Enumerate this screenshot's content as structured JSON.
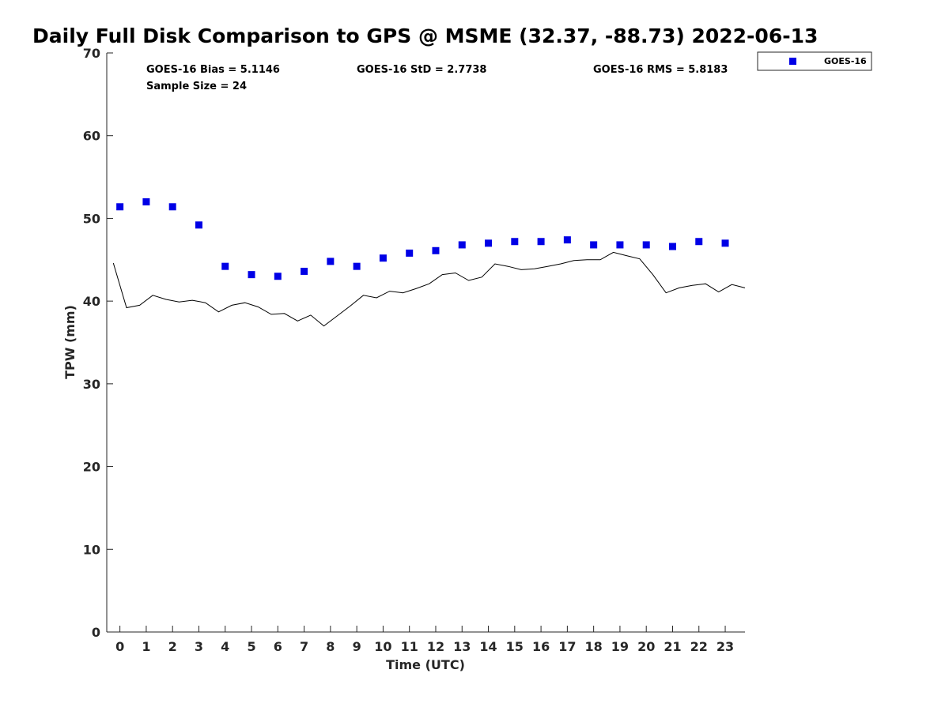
{
  "chart_data": {
    "type": "scatter",
    "title": "Daily Full Disk Comparison to GPS @ MSME (32.37, -88.73) 2022-06-13",
    "xlabel": "Time (UTC)",
    "ylabel": "TPW (mm)",
    "xlim": [
      -0.5,
      23.75
    ],
    "ylim": [
      0,
      70
    ],
    "xticks": [
      0,
      1,
      2,
      3,
      4,
      5,
      6,
      7,
      8,
      9,
      10,
      11,
      12,
      13,
      14,
      15,
      16,
      17,
      18,
      19,
      20,
      21,
      22,
      23
    ],
    "yticks": [
      0,
      10,
      20,
      30,
      40,
      50,
      60,
      70
    ],
    "grid": false,
    "legend_position": "top-right, outside plot",
    "stats": {
      "bias": "GOES-16 Bias = 5.1146",
      "std": "GOES-16 StD = 2.7738",
      "rms": "GOES-16 RMS = 5.8183",
      "sample": "Sample Size = 24"
    },
    "series": [
      {
        "name": "GOES-16",
        "marker": "square",
        "color": "#0000e6",
        "x": [
          0,
          1,
          2,
          3,
          4,
          5,
          6,
          7,
          8,
          9,
          10,
          11,
          12,
          13,
          14,
          15,
          16,
          17,
          18,
          19,
          20,
          21,
          22,
          23
        ],
        "y": [
          51.4,
          52.0,
          51.4,
          49.2,
          44.2,
          43.2,
          43.0,
          43.6,
          44.8,
          44.2,
          45.2,
          45.8,
          46.1,
          46.8,
          47.0,
          47.2,
          47.2,
          47.4,
          46.8,
          46.8,
          46.8,
          46.6,
          47.2,
          47.0
        ]
      },
      {
        "line_only": true,
        "color": "#000000",
        "x": [
          -0.25,
          0.25,
          0.75,
          1.25,
          1.75,
          2.25,
          2.75,
          3.25,
          3.75,
          4.25,
          4.75,
          5.25,
          5.75,
          6.25,
          6.75,
          7.25,
          7.75,
          8.25,
          8.75,
          9.25,
          9.75,
          10.25,
          10.75,
          11.25,
          11.75,
          12.25,
          12.75,
          13.25,
          13.75,
          14.25,
          14.75,
          15.25,
          15.75,
          16.25,
          16.75,
          17.25,
          17.75,
          18.25,
          18.75,
          19.25,
          19.75,
          20.25,
          20.75,
          21.25,
          21.75,
          22.25,
          22.75,
          23.25,
          23.75
        ],
        "y": [
          44.6,
          39.2,
          39.5,
          40.7,
          40.2,
          39.9,
          40.1,
          39.8,
          38.7,
          39.5,
          39.8,
          39.3,
          38.4,
          38.5,
          37.6,
          38.3,
          37.0,
          38.2,
          39.4,
          40.7,
          40.4,
          41.2,
          41.0,
          41.5,
          42.1,
          43.2,
          43.4,
          42.5,
          42.9,
          44.5,
          44.2,
          43.8,
          43.9,
          44.2,
          44.5,
          44.9,
          45.0,
          45.0,
          45.9,
          45.5,
          45.1,
          43.2,
          41.0,
          41.6,
          41.9,
          42.1,
          41.1,
          42.0,
          41.6
        ]
      }
    ]
  }
}
